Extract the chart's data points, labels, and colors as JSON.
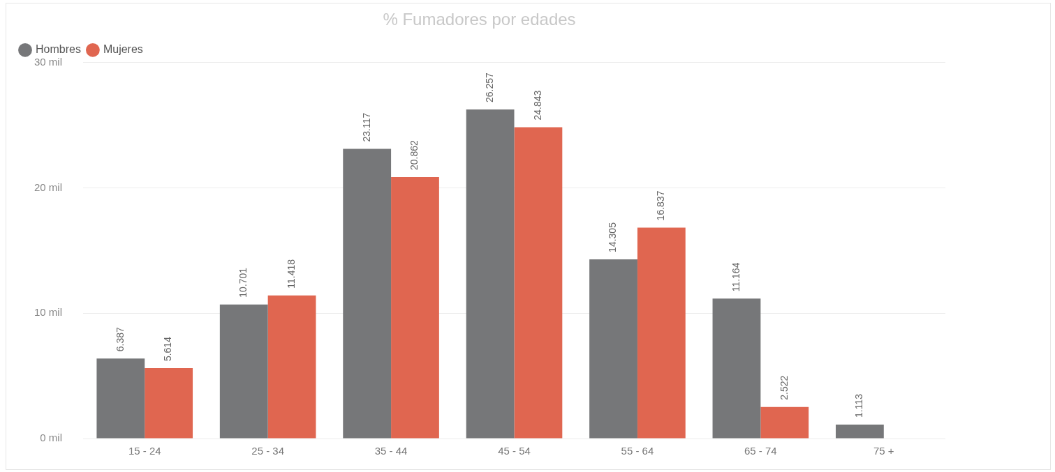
{
  "chart_data": {
    "type": "bar",
    "title": "% Fumadores por edades",
    "categories": [
      "15 - 24",
      "25 - 34",
      "35 - 44",
      "45 - 54",
      "55 - 64",
      "65 - 74",
      "75 +"
    ],
    "series": [
      {
        "name": "Hombres",
        "color": "#767779",
        "values": [
          6.387,
          10.701,
          23.117,
          26.257,
          14.305,
          11.164,
          1.113
        ],
        "value_labels": [
          "6.387",
          "10.701",
          "23.117",
          "26.257",
          "14.305",
          "11.164",
          "1.113"
        ]
      },
      {
        "name": "Mujeres",
        "color": "#e06650",
        "values": [
          5.614,
          11.418,
          20.862,
          24.843,
          16.837,
          2.522,
          null
        ],
        "value_labels": [
          "5.614",
          "11.418",
          "20.862",
          "24.843",
          "16.837",
          "2.522",
          null
        ]
      }
    ],
    "ylim": [
      0,
      30
    ],
    "yticks": [
      {
        "value": 0,
        "label": "0 mil"
      },
      {
        "value": 10,
        "label": "10 mil"
      },
      {
        "value": 20,
        "label": "20 mil"
      },
      {
        "value": 30,
        "label": "30 mil"
      }
    ],
    "grid": "y",
    "legend": "top left"
  }
}
